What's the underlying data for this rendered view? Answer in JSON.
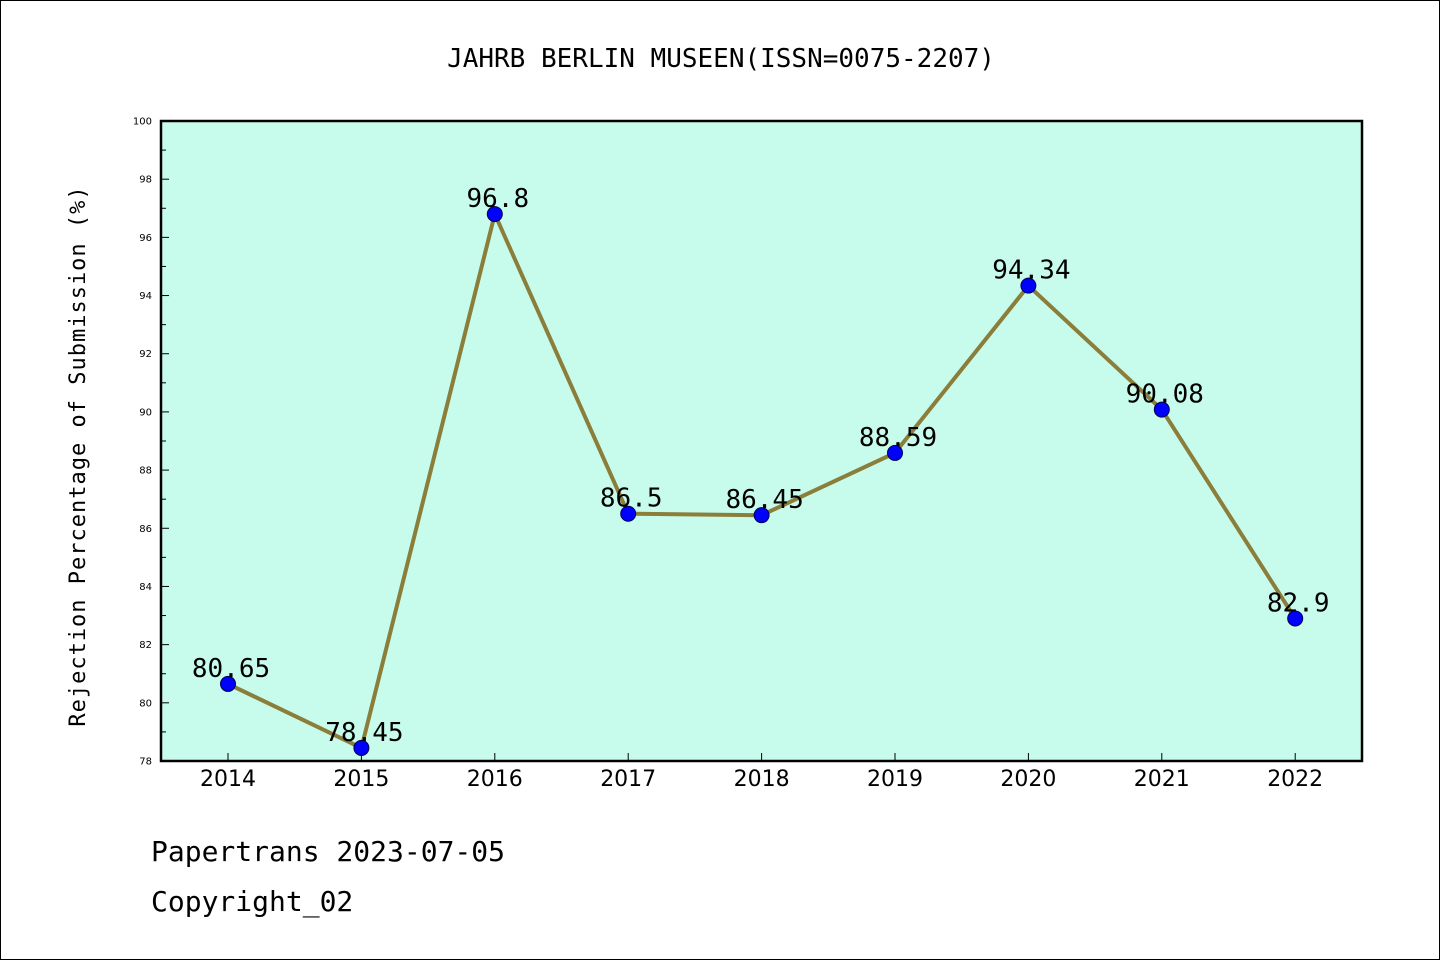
{
  "chart_data": {
    "type": "line",
    "title": "JAHRB BERLIN MUSEEN(ISSN=0075-2207)",
    "xlabel": "",
    "ylabel": "Rejection Percentage of Submission (%)",
    "categories": [
      "2014",
      "2015",
      "2016",
      "2017",
      "2018",
      "2019",
      "2020",
      "2021",
      "2022"
    ],
    "series": [
      {
        "values": [
          80.65,
          78.45,
          96.8,
          86.5,
          86.45,
          88.59,
          94.34,
          90.08,
          82.9
        ],
        "labels": [
          "80.65",
          "78.45",
          "96.8",
          "86.5",
          "86.45",
          "88.59",
          "94.34",
          "90.08",
          "82.9"
        ]
      }
    ],
    "ylim": [
      78,
      100
    ],
    "yticks": [
      "78",
      "80",
      "82",
      "84",
      "86",
      "88",
      "90",
      "92",
      "94",
      "96",
      "98",
      "100"
    ],
    "grid": false,
    "colors": {
      "plot_background": "#c7fcec",
      "line": "#8b7d3a",
      "marker": "#0000ff"
    }
  },
  "footer": {
    "line1": "Papertrans 2023-07-05",
    "line2": "Copyright_02"
  }
}
